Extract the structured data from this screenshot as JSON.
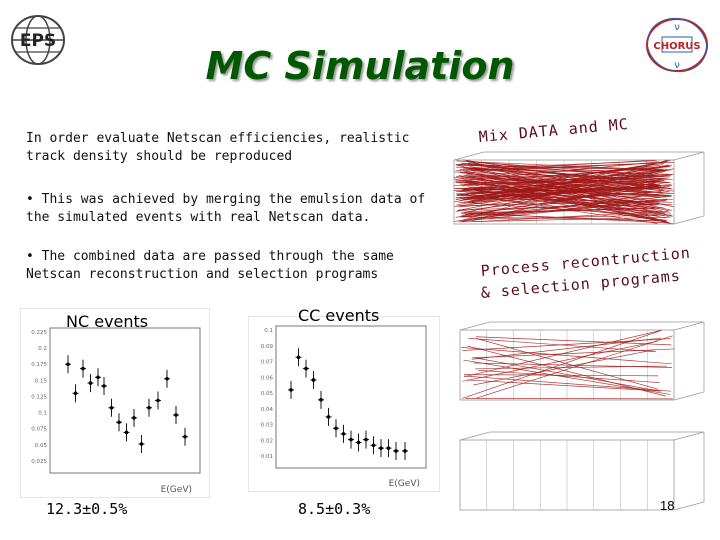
{
  "slide": {
    "title": "MC Simulation",
    "paragraph1": "In order evaluate Netscan efficiencies, realistic track density should be reproduced",
    "paragraph2": "• This was achieved by merging the emulsion data of the simulated events with real Netscan data.",
    "paragraph3": "• The combined data are passed through the same Netscan reconstruction and selection programs",
    "mix_label": "Mix DATA and MC",
    "process_label_line1": "Process recontruction",
    "process_label_line2": "& selection programs",
    "nc_label": "NC events",
    "cc_label": "CC events",
    "nc_efficiency": "12.3±0.5%",
    "cc_efficiency": "8.5±0.3%",
    "page_number": "18"
  },
  "logos": {
    "left_logo_text": "EPS",
    "right_logo_text": "CHORUS"
  },
  "histograms": {
    "x_axis_label": "E(GeV)",
    "nc": {
      "y_ticks": [
        "0.225",
        "0.2",
        "0.175",
        "0.15",
        "0.125",
        "0.1",
        "0.075",
        "0.05",
        "0.025"
      ]
    },
    "cc": {
      "y_ticks": [
        "0.1",
        "0.09",
        "0.07",
        "0.06",
        "0.05",
        "0.04",
        "0.03",
        "0.02",
        "0.01"
      ]
    }
  },
  "colors": {
    "title": "#005800",
    "annotation": "#5a0b1e",
    "tracks": "#a01818"
  }
}
